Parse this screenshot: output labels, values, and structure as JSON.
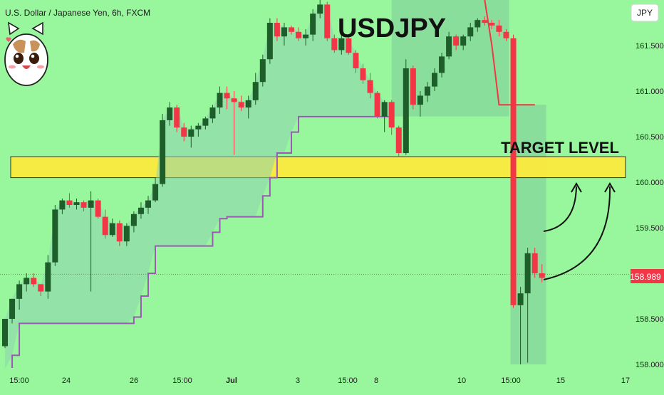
{
  "header": {
    "symbol_line": "U.S. Dollar / Japanese Yen, 6h, FXCM",
    "big_title": "USDJPY",
    "currency_badge": "JPY",
    "mascot_icon": "cat-face-icon"
  },
  "annotations": {
    "target_label": "TARGET LEVEL",
    "target_zone": [
      160.05,
      160.28
    ],
    "arrow_icon": "curved-up-arrow-icon"
  },
  "price_badge": {
    "value": "158.989",
    "color": "#f23645"
  },
  "colors": {
    "background": "#98f79c",
    "bull": "#1e5e2a",
    "bear": "#f23645",
    "trail_line": "#9b59b6",
    "target_zone": "#ffeb3b"
  },
  "chart_data": {
    "type": "candlestick",
    "title": "USDJPY",
    "ylim": [
      158.0,
      162.0
    ],
    "y_ticks": [
      "161.500",
      "161.000",
      "160.500",
      "160.000",
      "159.500",
      "159.000",
      "158.500",
      "158.000"
    ],
    "x_ticks": [
      "15:00",
      "24",
      "26",
      "15:00",
      "Jul",
      "3",
      "15:00",
      "8",
      "10",
      "15:00",
      "15",
      "17"
    ],
    "last_price": 158.989,
    "candles": [
      [
        158.2,
        158.5,
        158.18,
        158.5
      ],
      [
        158.5,
        158.72,
        158.45,
        158.72
      ],
      [
        158.72,
        158.92,
        158.6,
        158.88
      ],
      [
        158.88,
        159.0,
        158.8,
        158.95
      ],
      [
        158.95,
        159.0,
        158.85,
        158.88
      ],
      [
        158.88,
        158.88,
        158.75,
        158.8
      ],
      [
        158.8,
        159.2,
        158.72,
        159.12
      ],
      [
        159.12,
        159.75,
        159.08,
        159.7
      ],
      [
        159.7,
        159.82,
        159.65,
        159.8
      ],
      [
        159.8,
        159.88,
        159.72,
        159.75
      ],
      [
        159.75,
        159.82,
        159.7,
        159.78
      ],
      [
        159.78,
        159.8,
        159.68,
        159.72
      ],
      [
        159.72,
        159.9,
        158.8,
        159.8
      ],
      [
        159.8,
        159.82,
        159.6,
        159.62
      ],
      [
        159.62,
        159.7,
        159.38,
        159.42
      ],
      [
        159.42,
        159.6,
        159.4,
        159.55
      ],
      [
        159.55,
        159.58,
        159.3,
        159.35
      ],
      [
        159.35,
        159.55,
        159.3,
        159.52
      ],
      [
        159.52,
        159.68,
        159.45,
        159.65
      ],
      [
        159.65,
        159.78,
        159.6,
        159.72
      ],
      [
        159.72,
        159.85,
        159.65,
        159.8
      ],
      [
        159.8,
        160.05,
        159.78,
        159.98
      ],
      [
        159.98,
        160.75,
        159.95,
        160.68
      ],
      [
        160.68,
        160.88,
        160.62,
        160.82
      ],
      [
        160.82,
        160.85,
        160.55,
        160.6
      ],
      [
        160.6,
        160.65,
        160.45,
        160.5
      ],
      [
        160.5,
        160.62,
        160.38,
        160.58
      ],
      [
        160.58,
        160.65,
        160.5,
        160.62
      ],
      [
        160.62,
        160.72,
        160.58,
        160.7
      ],
      [
        160.7,
        160.85,
        160.65,
        160.82
      ],
      [
        160.82,
        161.05,
        160.75,
        160.98
      ],
      [
        160.98,
        161.05,
        160.8,
        160.92
      ],
      [
        160.92,
        161.0,
        160.3,
        160.88
      ],
      [
        160.88,
        160.95,
        160.78,
        160.82
      ],
      [
        160.82,
        160.95,
        160.7,
        160.9
      ],
      [
        160.9,
        161.2,
        160.85,
        161.1
      ],
      [
        161.1,
        161.4,
        161.05,
        161.35
      ],
      [
        161.35,
        161.8,
        161.3,
        161.75
      ],
      [
        161.75,
        161.8,
        161.55,
        161.6
      ],
      [
        161.6,
        161.75,
        161.5,
        161.7
      ],
      [
        161.7,
        161.72,
        161.62,
        161.65
      ],
      [
        161.65,
        161.7,
        161.55,
        161.58
      ],
      [
        161.58,
        161.68,
        161.5,
        161.62
      ],
      [
        161.62,
        161.9,
        161.55,
        161.85
      ],
      [
        161.85,
        162.0,
        161.8,
        161.95
      ],
      [
        161.95,
        161.98,
        161.55,
        161.58
      ],
      [
        161.58,
        161.62,
        161.42,
        161.45
      ],
      [
        161.45,
        161.62,
        161.4,
        161.58
      ],
      [
        161.58,
        161.6,
        161.4,
        161.42
      ],
      [
        161.42,
        161.45,
        161.2,
        161.25
      ],
      [
        161.25,
        161.3,
        161.08,
        161.12
      ],
      [
        161.12,
        161.2,
        160.92,
        160.98
      ],
      [
        160.98,
        161.0,
        160.7,
        160.72
      ],
      [
        160.72,
        160.9,
        160.55,
        160.88
      ],
      [
        160.88,
        160.9,
        160.52,
        160.6
      ],
      [
        160.6,
        160.62,
        160.28,
        160.32
      ],
      [
        160.32,
        161.35,
        160.3,
        161.25
      ],
      [
        161.25,
        161.28,
        160.8,
        160.85
      ],
      [
        160.85,
        161.0,
        160.72,
        160.95
      ],
      [
        160.95,
        161.1,
        160.88,
        161.05
      ],
      [
        161.05,
        161.25,
        161.0,
        161.2
      ],
      [
        161.2,
        161.42,
        161.15,
        161.38
      ],
      [
        161.38,
        161.65,
        161.35,
        161.6
      ],
      [
        161.6,
        161.62,
        161.45,
        161.5
      ],
      [
        161.5,
        161.62,
        161.45,
        161.6
      ],
      [
        161.6,
        161.75,
        161.55,
        161.7
      ],
      [
        161.7,
        161.8,
        161.65,
        161.78
      ],
      [
        161.78,
        161.82,
        161.72,
        161.75
      ],
      [
        161.75,
        161.78,
        161.68,
        161.72
      ],
      [
        161.72,
        161.78,
        161.6,
        161.65
      ],
      [
        161.65,
        161.68,
        161.55,
        161.58
      ],
      [
        161.58,
        161.62,
        158.62,
        158.65
      ],
      [
        158.65,
        158.85,
        158.0,
        158.78
      ],
      [
        158.78,
        159.28,
        158.02,
        159.22
      ],
      [
        159.22,
        159.28,
        158.95,
        159.0
      ],
      [
        159.0,
        159.1,
        158.9,
        158.95
      ]
    ],
    "trail": [
      [
        157.95,
        158.1,
        158.45,
        158.45,
        158.45,
        158.45,
        158.45,
        158.45,
        158.45,
        158.45,
        158.45,
        158.45,
        158.45,
        158.45,
        158.45,
        158.45,
        158.45,
        158.45,
        158.52,
        158.75,
        159.0,
        159.3,
        159.3,
        159.3,
        159.3,
        159.3,
        159.3,
        159.3,
        159.3,
        159.45,
        159.6,
        159.62,
        159.62,
        159.62,
        159.62,
        159.62,
        159.85,
        160.05,
        160.32,
        160.32,
        160.55,
        160.72,
        160.72,
        160.72,
        160.72,
        160.72,
        160.72,
        160.72,
        160.72,
        160.72,
        160.72,
        160.72,
        160.72,
        160.72,
        160.72
      ]
    ],
    "trail_tail": [
      162.0,
      161.5,
      160.85,
      160.85,
      160.85,
      160.85,
      160.85,
      160.85
    ]
  }
}
